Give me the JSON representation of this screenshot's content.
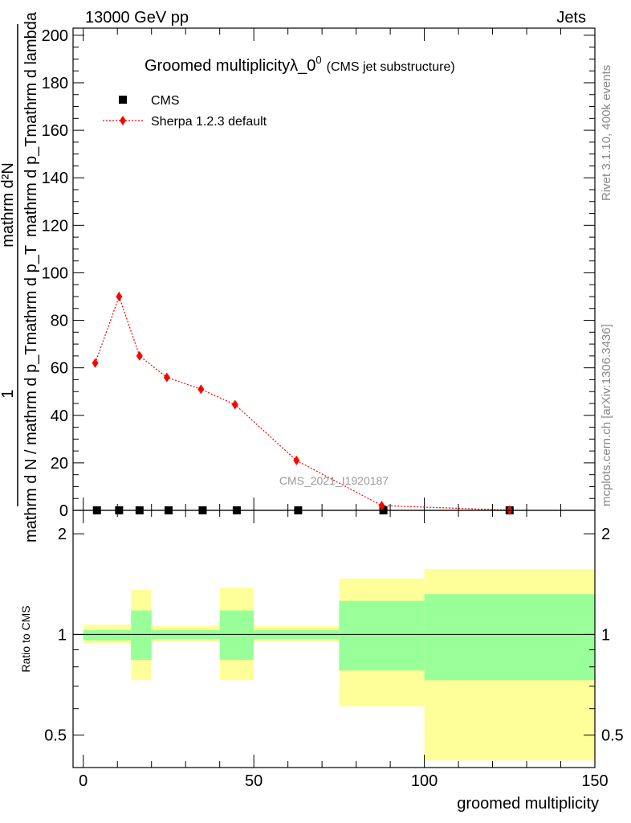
{
  "header": {
    "left": "13000 GeV pp",
    "right": "Jets"
  },
  "side_labels": {
    "rivet": "Rivet 3.1.10,  400k events",
    "mcplots": "mcplots.cern.ch [arXiv:1306.3436]"
  },
  "chart_data": [
    {
      "type": "scatter",
      "title_main": "Groomed multiplicityλ_0",
      "title_sup": "0",
      "title_paren": "(CMS jet substructure)",
      "ylabel_numerator": "1",
      "ylabel_denominator": "mathrm d N / mathrm d p_Tmathrm d p_Tmathrm d lambda",
      "ylabel_lines": [
        "mathrm d²N",
        "mathrm d p_Tmathrm d lambda",
        "mathrm d N / mathrm d p_Tmathrm d p_T"
      ],
      "xlim": [
        -3,
        150
      ],
      "ylim": [
        0,
        203
      ],
      "yticks": [
        0,
        20,
        40,
        60,
        80,
        100,
        120,
        140,
        160,
        180,
        200
      ],
      "watermark": "CMS_2021_I1920187",
      "legend_position": "top-left",
      "series": [
        {
          "name": "CMS",
          "color": "#000000",
          "marker": "square",
          "x": [
            4,
            10.5,
            16.5,
            25,
            35,
            45,
            63,
            88,
            125
          ],
          "y": [
            0,
            0,
            0,
            0,
            0,
            0,
            0,
            0,
            0
          ],
          "x_low": [
            0,
            7,
            13,
            20,
            30,
            40,
            50,
            75,
            100
          ],
          "x_high": [
            7,
            13,
            20,
            30,
            40,
            50,
            75,
            100,
            150
          ]
        },
        {
          "name": "Sherpa 1.2.3 default",
          "color": "#ff0000",
          "marker": "diamond",
          "line": "dotted",
          "x": [
            3.5,
            10.5,
            16.5,
            24.5,
            34.5,
            44.5,
            62.5,
            87.5,
            125
          ],
          "y": [
            62,
            90,
            65,
            56,
            51,
            44.5,
            21,
            2,
            0.1
          ],
          "yerr": [
            0,
            2,
            0,
            0,
            0,
            0,
            0,
            0,
            0
          ]
        }
      ]
    },
    {
      "type": "area",
      "ylabel": "Ratio to CMS",
      "xlabel": "groomed multiplicity",
      "xlim": [
        -3,
        150
      ],
      "ylim": [
        0.4,
        2.35
      ],
      "log_y": true,
      "yticks_labeled": [
        0.5,
        1,
        2
      ],
      "xticks": [
        0,
        50,
        100,
        150
      ],
      "reference_line": 1,
      "bands": [
        {
          "x_low": 0,
          "x_high": 14,
          "yellow": [
            0.94,
            1.07
          ],
          "green": [
            0.96,
            1.03
          ]
        },
        {
          "x_low": 14,
          "x_high": 20,
          "yellow": [
            0.73,
            1.36
          ],
          "green": [
            0.84,
            1.18
          ]
        },
        {
          "x_low": 20,
          "x_high": 40,
          "yellow": [
            0.95,
            1.06
          ],
          "green": [
            0.97,
            1.03
          ]
        },
        {
          "x_low": 40,
          "x_high": 50,
          "yellow": [
            0.73,
            1.38
          ],
          "green": [
            0.84,
            1.18
          ]
        },
        {
          "x_low": 50,
          "x_high": 75,
          "yellow": [
            0.95,
            1.06
          ],
          "green": [
            0.97,
            1.03
          ]
        },
        {
          "x_low": 75,
          "x_high": 100,
          "yellow": [
            0.61,
            1.47
          ],
          "green": [
            0.78,
            1.26
          ]
        },
        {
          "x_low": 100,
          "x_high": 150,
          "yellow": [
            0.42,
            1.57
          ],
          "green": [
            0.73,
            1.32
          ]
        }
      ],
      "colors": {
        "yellow": "#ffff99",
        "green": "#99ff99"
      }
    }
  ]
}
